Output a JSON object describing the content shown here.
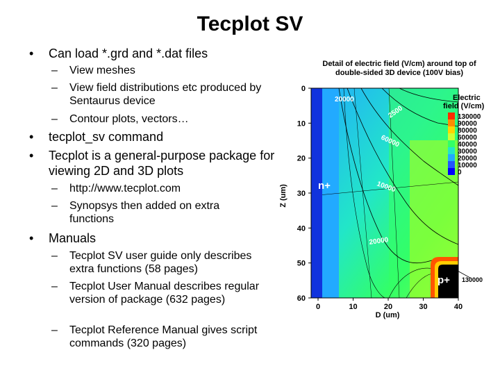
{
  "slide": {
    "title": "Tecplot SV",
    "bullets": [
      {
        "text": "Can load *.grd and *.dat files",
        "subs": [
          "View meshes",
          "View field distributions etc produced by Sentaurus device",
          "Contour plots, vectors…"
        ]
      },
      {
        "text": "tecplot_sv command",
        "subs": []
      },
      {
        "text": "Tecplot is a general-purpose package for viewing 2D and 3D plots",
        "subs": [
          "http://www.tecplot.com",
          "Synopsys then added on extra functions"
        ]
      },
      {
        "text": "Manuals",
        "subs": [
          "Tecplot SV user guide only describes extra functions (58 pages)",
          "Tecplot User Manual describes regular version of package (632 pages)",
          "Tecplot Reference Manual gives script commands (320 pages)"
        ]
      }
    ]
  },
  "figure": {
    "title_line1": "Detail of electric field (V/cm) around top of",
    "title_line2": "double-sided 3D device (100V bias)",
    "xlabel": "D (um)",
    "ylabel": "Z (um)",
    "x_ticks": [
      "0",
      "10",
      "20",
      "30",
      "40"
    ],
    "y_ticks": [
      "0",
      "10",
      "20",
      "30",
      "40",
      "50",
      "60"
    ],
    "legend_title_line1": "Electric",
    "legend_title_line2": "field (V/cm)",
    "legend_levels": [
      "130000",
      "90000",
      "80000",
      "60000",
      "40000",
      "30000",
      "20000",
      "10000",
      "0"
    ],
    "legend_colors": [
      "#ff2a00",
      "#ff8c00",
      "#ffd400",
      "#ccff33",
      "#33ff66",
      "#22e6c8",
      "#22aaff",
      "#2255ff",
      "#0000ff"
    ],
    "contour_labels": [
      "20000",
      "2500",
      "60000",
      "10000",
      "20000"
    ],
    "region_labels": [
      "n+",
      "p+"
    ],
    "callout_value": "130000"
  }
}
